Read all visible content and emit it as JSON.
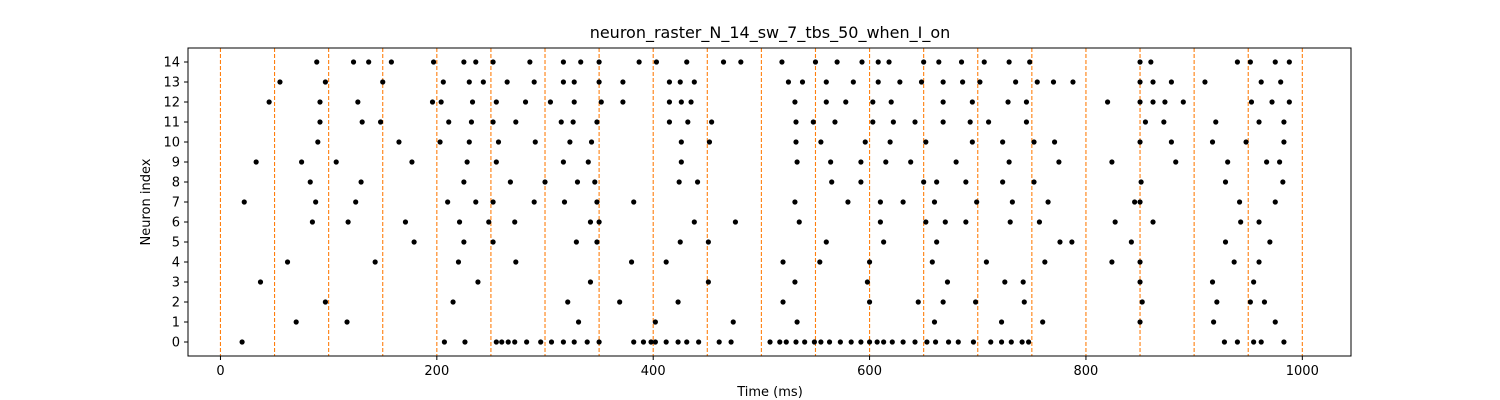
{
  "chart_data": {
    "type": "scatter",
    "title": "neuron_raster_N_14_sw_7_tbs_50_when_I_on",
    "xlabel": "Time (ms)",
    "ylabel": "Neuron index",
    "xlim": [
      -30,
      1045
    ],
    "ylim": [
      -0.7,
      14.7
    ],
    "xticks": [
      0,
      200,
      400,
      600,
      800,
      1000
    ],
    "yticks": [
      0,
      1,
      2,
      3,
      4,
      5,
      6,
      7,
      8,
      9,
      10,
      11,
      12,
      13,
      14
    ],
    "grid": false,
    "legend": "none",
    "marker_color": "#000000",
    "vline_color": "#ff7f0e",
    "vlines": [
      0,
      50,
      100,
      150,
      200,
      250,
      300,
      350,
      400,
      450,
      500,
      550,
      600,
      650,
      700,
      750,
      800,
      850,
      900,
      950,
      1000
    ],
    "spikes": [
      {
        "neuron": 0,
        "times": [
          20,
          207,
          226,
          255,
          260,
          266,
          272,
          283,
          296,
          306,
          317,
          327,
          339,
          350,
          382,
          391,
          398,
          402,
          412,
          423,
          431,
          442,
          461,
          472,
          508,
          517,
          523,
          532,
          540,
          549,
          555,
          563,
          573,
          583,
          592,
          600,
          607,
          613,
          621,
          631,
          642,
          653,
          661,
          673,
          682,
          696,
          712,
          722,
          731,
          741,
          747,
          928,
          940,
          955,
          962,
          983
        ]
      },
      {
        "neuron": 1,
        "times": [
          70,
          117,
          331,
          402,
          474,
          533,
          660,
          722,
          760,
          850,
          918,
          975
        ]
      },
      {
        "neuron": 2,
        "times": [
          97,
          215,
          321,
          369,
          423,
          520,
          600,
          645,
          668,
          698,
          743,
          852,
          921,
          952,
          965
        ]
      },
      {
        "neuron": 3,
        "times": [
          37,
          238,
          342,
          451,
          531,
          598,
          672,
          725,
          742,
          850,
          917,
          955
        ]
      },
      {
        "neuron": 4,
        "times": [
          62,
          143,
          220,
          273,
          380,
          412,
          520,
          554,
          600,
          658,
          708,
          762,
          824,
          850,
          937,
          960
        ]
      },
      {
        "neuron": 5,
        "times": [
          179,
          225,
          252,
          329,
          348,
          425,
          451,
          560,
          613,
          662,
          776,
          787,
          842,
          929,
          970
        ]
      },
      {
        "neuron": 6,
        "times": [
          85,
          118,
          171,
          221,
          248,
          272,
          342,
          350,
          438,
          476,
          535,
          610,
          652,
          670,
          689,
          730,
          757,
          827,
          862,
          943,
          960
        ]
      },
      {
        "neuron": 7,
        "times": [
          22,
          88,
          125,
          210,
          236,
          252,
          290,
          318,
          348,
          382,
          531,
          580,
          610,
          631,
          660,
          699,
          732,
          765,
          845,
          850,
          942,
          975
        ]
      },
      {
        "neuron": 8,
        "times": [
          83,
          130,
          225,
          268,
          300,
          330,
          346,
          424,
          441,
          565,
          592,
          650,
          662,
          689,
          723,
          752,
          851,
          929,
          982
        ]
      },
      {
        "neuron": 9,
        "times": [
          33,
          75,
          107,
          177,
          228,
          255,
          317,
          340,
          426,
          533,
          564,
          592,
          615,
          638,
          680,
          729,
          775,
          824,
          883,
          931,
          967,
          979
        ]
      },
      {
        "neuron": 10,
        "times": [
          90,
          165,
          203,
          230,
          257,
          291,
          323,
          343,
          426,
          452,
          532,
          555,
          596,
          619,
          652,
          695,
          723,
          752,
          771,
          850,
          879,
          917,
          948,
          983
        ]
      },
      {
        "neuron": 11,
        "times": [
          92,
          131,
          148,
          211,
          232,
          252,
          273,
          315,
          326,
          348,
          415,
          432,
          454,
          532,
          548,
          568,
          603,
          622,
          642,
          668,
          693,
          710,
          745,
          855,
          872,
          920,
          960,
          983
        ]
      },
      {
        "neuron": 12,
        "times": [
          45,
          92,
          127,
          196,
          204,
          233,
          255,
          282,
          305,
          327,
          352,
          372,
          415,
          426,
          435,
          531,
          560,
          578,
          603,
          620,
          668,
          695,
          728,
          745,
          820,
          850,
          862,
          873,
          890,
          953,
          972,
          988
        ]
      },
      {
        "neuron": 13,
        "times": [
          55,
          97,
          150,
          206,
          230,
          243,
          265,
          290,
          317,
          327,
          350,
          372,
          415,
          425,
          438,
          525,
          538,
          560,
          585,
          608,
          628,
          648,
          668,
          686,
          702,
          735,
          755,
          770,
          788,
          850,
          862,
          879,
          910,
          962,
          980
        ]
      },
      {
        "neuron": 14,
        "times": [
          89,
          123,
          137,
          158,
          197,
          225,
          236,
          252,
          286,
          317,
          333,
          350,
          387,
          403,
          431,
          465,
          481,
          519,
          550,
          570,
          593,
          608,
          618,
          650,
          664,
          685,
          706,
          729,
          748,
          850,
          860,
          940,
          952,
          975,
          988
        ]
      }
    ]
  }
}
